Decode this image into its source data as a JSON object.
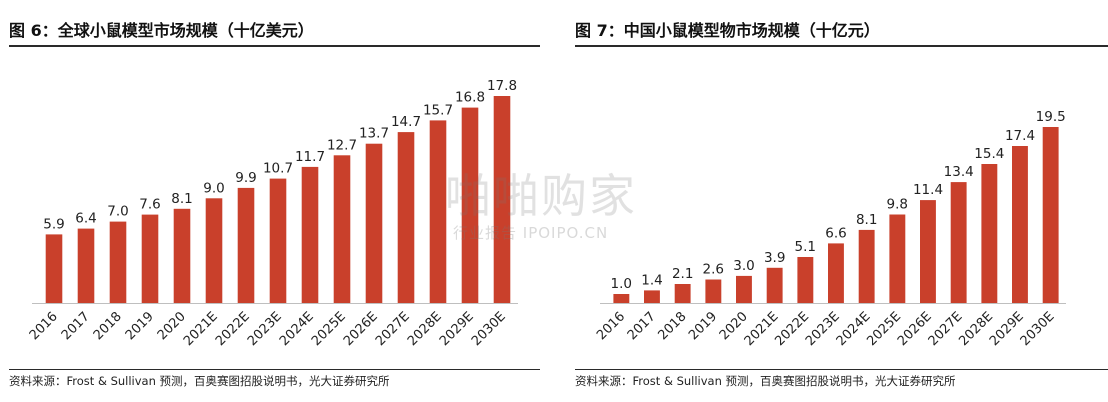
{
  "watermark": {
    "brand": "啪啪购家",
    "sub": "行业报告 IPOIPO.CN"
  },
  "colors": {
    "bar": "#C9402B",
    "axis": "#bfbfbf",
    "text": "#222222"
  },
  "chart_data": [
    {
      "type": "bar",
      "title": "图 6：全球小鼠模型市场规模（十亿美元）",
      "source": "资料来源：Frost & Sullivan 预测，百奥赛图招股说明书，光大证券研究所",
      "categories": [
        "2016",
        "2017",
        "2018",
        "2019",
        "2020",
        "2021E",
        "2022E",
        "2023E",
        "2024E",
        "2025E",
        "2026E",
        "2027E",
        "2028E",
        "2029E",
        "2030E"
      ],
      "values": [
        5.9,
        6.4,
        7.0,
        7.6,
        8.1,
        9.0,
        9.9,
        10.7,
        11.7,
        12.7,
        13.7,
        14.7,
        15.7,
        16.8,
        17.8
      ],
      "data_labels": [
        "5.9",
        "6.4",
        "7.0",
        "7.6",
        "8.1",
        "9.0",
        "9.9",
        "10.7",
        "11.7",
        "12.7",
        "13.7",
        "14.7",
        "15.7",
        "16.8",
        "17.8"
      ],
      "xlabel": "",
      "ylabel": "",
      "ylim": [
        0,
        20
      ],
      "grid": false,
      "legend": "none"
    },
    {
      "type": "bar",
      "title": "图 7：中国小鼠模型物市场规模（十亿元）",
      "source": "资料来源：Frost & Sullivan 预测，百奥赛图招股说明书，光大证券研究所",
      "categories": [
        "2016",
        "2017",
        "2018",
        "2019",
        "2020",
        "2021E",
        "2022E",
        "2023E",
        "2024E",
        "2025E",
        "2026E",
        "2027E",
        "2028E",
        "2029E",
        "2030E"
      ],
      "values": [
        1.0,
        1.4,
        2.1,
        2.6,
        3.0,
        3.9,
        5.1,
        6.6,
        8.1,
        9.8,
        11.4,
        13.4,
        15.4,
        17.4,
        19.5
      ],
      "data_labels": [
        "1.0",
        "1.4",
        "2.1",
        "2.6",
        "3.0",
        "3.9",
        "5.1",
        "6.6",
        "8.1",
        "9.8",
        "11.4",
        "13.4",
        "15.4",
        "17.4",
        "19.5"
      ],
      "xlabel": "",
      "ylabel": "",
      "ylim": [
        0,
        22
      ],
      "grid": false,
      "legend": "none"
    }
  ]
}
